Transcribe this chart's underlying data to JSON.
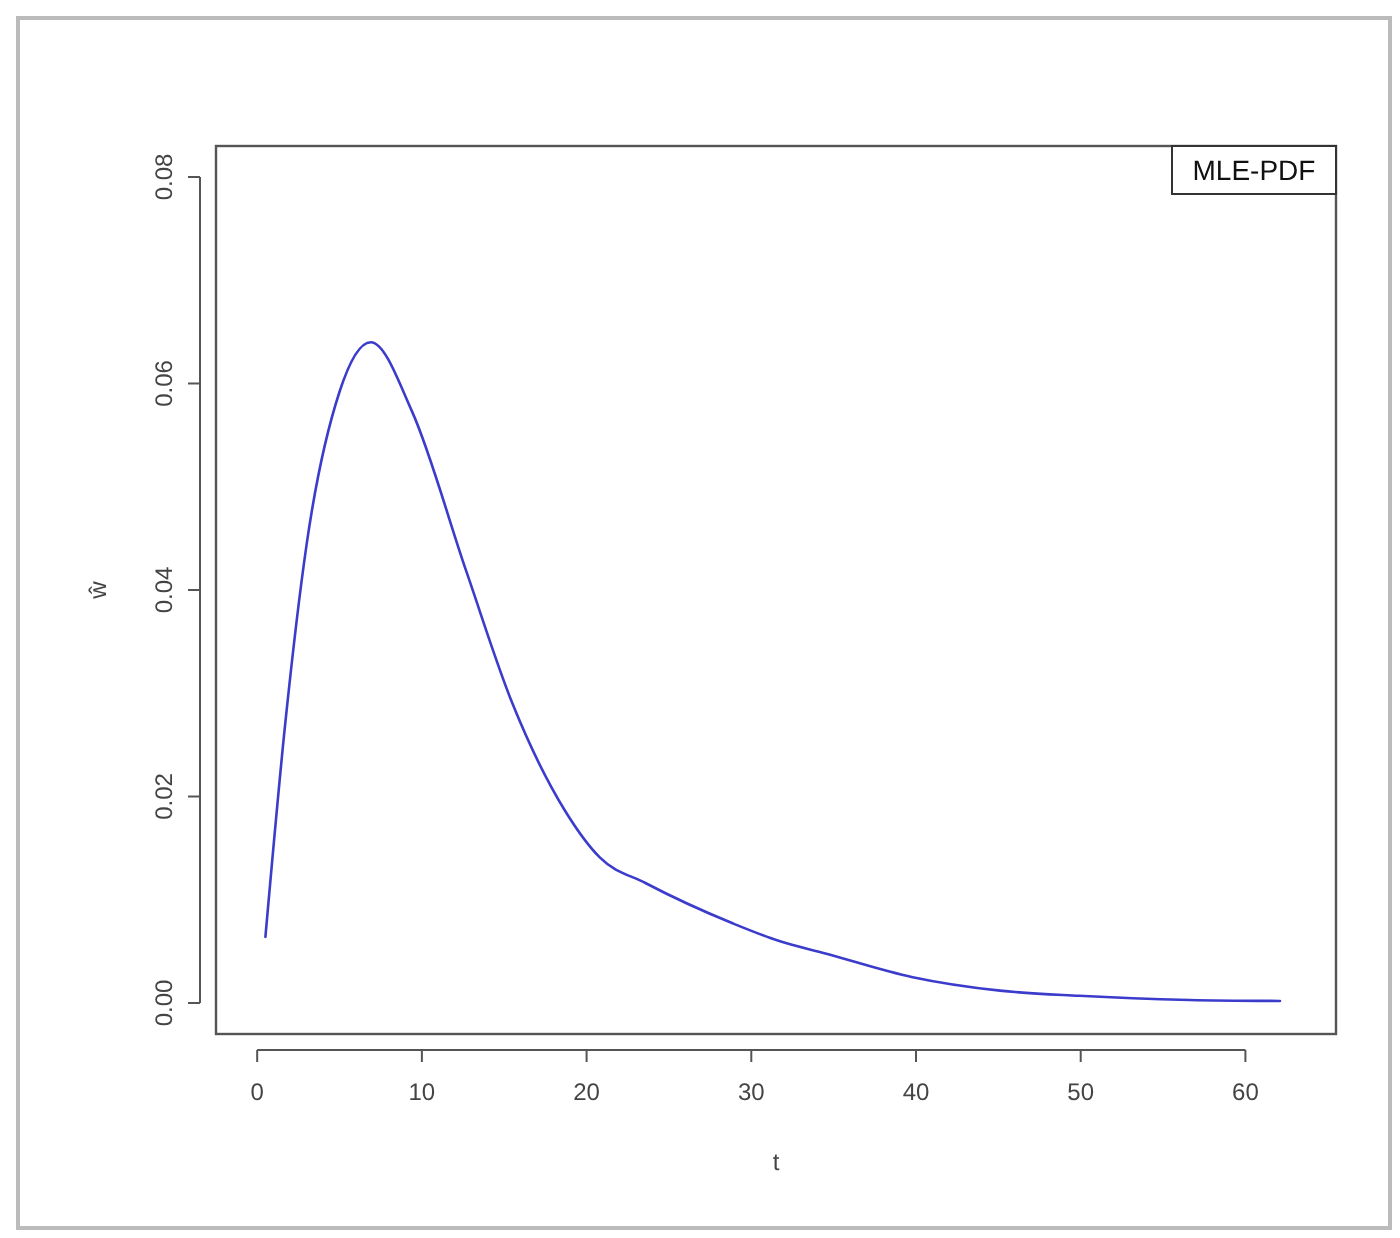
{
  "chart_data": {
    "type": "line",
    "xlabel": "t",
    "ylabel": "ŵ",
    "xlim": [
      -2.5,
      65.5
    ],
    "ylim": [
      -0.003,
      0.083
    ],
    "xticks": [
      0,
      10,
      20,
      30,
      40,
      50,
      60
    ],
    "yticks": [
      {
        "value": 0,
        "label": "0.00"
      },
      {
        "value": 0.02,
        "label": "0.02"
      },
      {
        "value": 0.04,
        "label": "0.04"
      },
      {
        "value": 0.06,
        "label": "0.06"
      },
      {
        "value": 0.08,
        "label": "0.08"
      }
    ],
    "grid": false,
    "legend": "top right",
    "line_style": "solid",
    "marker": "none",
    "series": [
      {
        "name": "MLE-PDF",
        "color": "#3c3ccc",
        "x": [
          0.5,
          1.7,
          3.0,
          5.0,
          6.9,
          9.4,
          12.7,
          15.5,
          18.7,
          20.8,
          23.6,
          28.9,
          31.7,
          34.5,
          39.8,
          45.1,
          49.9,
          56.6,
          62.1
        ],
        "values": [
          0.0064,
          0.027,
          0.0444,
          0.0592,
          0.064,
          0.0573,
          0.0418,
          0.029,
          0.0186,
          0.0141,
          0.0116,
          0.0077,
          0.006,
          0.0048,
          0.0025,
          0.0012,
          0.0007,
          0.0003,
          0.0002
        ]
      }
    ]
  }
}
